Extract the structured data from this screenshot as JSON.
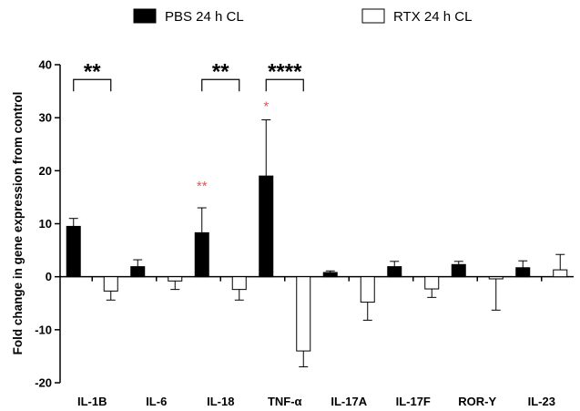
{
  "chart_data": {
    "type": "bar",
    "title": "",
    "xlabel": "",
    "ylabel": "Fold change in gene expression from control",
    "ylim": [
      -20,
      40
    ],
    "yticks": [
      -20,
      -10,
      0,
      10,
      20,
      30,
      40
    ],
    "grid": false,
    "legend_position": "top",
    "categories": [
      "IL-1B",
      "IL-6",
      "IL-18",
      "TNF-α",
      "IL-17A",
      "IL-17F",
      "ROR-Y",
      "IL-23"
    ],
    "series": [
      {
        "name": "PBS 24 h CL",
        "color": "#000000",
        "fill": "solid",
        "values": [
          9.5,
          1.9,
          8.3,
          19.0,
          0.8,
          1.9,
          2.3,
          1.7
        ],
        "error": [
          1.5,
          1.3,
          4.7,
          10.6,
          0.3,
          1.0,
          0.6,
          1.3
        ]
      },
      {
        "name": "RTX 24 h CL",
        "color": "#ffffff",
        "fill": "hollow",
        "values": [
          -2.7,
          -0.8,
          -2.4,
          -14.0,
          -4.8,
          -2.3,
          -0.4,
          1.3
        ],
        "error": [
          1.7,
          1.6,
          2.0,
          3.0,
          3.4,
          1.6,
          5.9,
          2.9
        ]
      }
    ],
    "annotations": {
      "brackets": [
        {
          "category": "IL-1B",
          "label": "**",
          "at": 38
        },
        {
          "category": "IL-18",
          "label": "**",
          "at": 38
        },
        {
          "category": "TNF-α",
          "label": "****",
          "at": 38
        }
      ],
      "red_marks": [
        {
          "category": "IL-18",
          "label": "**",
          "at": 17.5
        },
        {
          "category": "TNF-α",
          "label": "*",
          "at": 32.5
        }
      ]
    }
  }
}
